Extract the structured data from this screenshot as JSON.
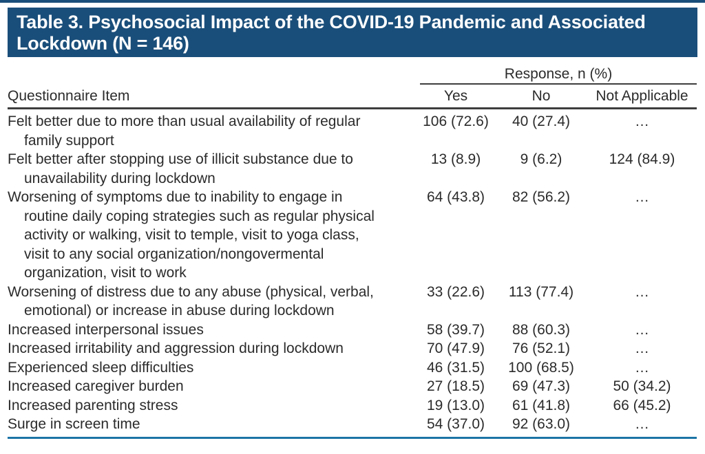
{
  "title": "Table 3. Psychosocial Impact of the COVID-19 Pandemic and Associated\nLockdown (N = 146)",
  "table": {
    "spanner": "Response, n (%)",
    "columns": {
      "item": "Questionnaire Item",
      "yes": "Yes",
      "no": "No",
      "na": "Not Applicable"
    },
    "rows": [
      {
        "item": "Felt better due to more than usual availability of regular\nfamily support",
        "yes": "106 (72.6)",
        "no": "40 (27.4)",
        "na": "…"
      },
      {
        "item": "Felt better after stopping use of illicit substance due to\nunavailability during lockdown",
        "yes": "13 (8.9)",
        "no": "9 (6.2)",
        "na": "124 (84.9)"
      },
      {
        "item": "Worsening of symptoms due to inability to engage in\nroutine daily coping strategies such as regular physical\nactivity or walking, visit to temple, visit to yoga class,\nvisit to any social organization/nongovermental\norganization, visit to work",
        "yes": "64 (43.8)",
        "no": "82 (56.2)",
        "na": "…"
      },
      {
        "item": "Worsening of distress due to any abuse (physical, verbal,\nemotional) or increase in abuse during lockdown",
        "yes": "33 (22.6)",
        "no": "113 (77.4)",
        "na": "…"
      },
      {
        "item": "Increased interpersonal issues",
        "yes": "58 (39.7)",
        "no": "88 (60.3)",
        "na": "…"
      },
      {
        "item": "Increased irritability and aggression during lockdown",
        "yes": "70 (47.9)",
        "no": "76 (52.1)",
        "na": "…"
      },
      {
        "item": "Experienced sleep difficulties",
        "yes": "46 (31.5)",
        "no": "100 (68.5)",
        "na": "…"
      },
      {
        "item": "Increased caregiver burden",
        "yes": "27 (18.5)",
        "no": "69 (47.3)",
        "na": "50 (34.2)"
      },
      {
        "item": "Increased parenting stress",
        "yes": "19 (13.0)",
        "no": "61 (41.8)",
        "na": "66 (45.2)"
      },
      {
        "item": "Surge in screen time",
        "yes": "54 (37.0)",
        "no": "92 (63.0)",
        "na": "…"
      }
    ]
  },
  "colors": {
    "banner_background": "#1A4E7A",
    "banner_text": "#FFFFFF",
    "top_rule": "#1A4E7A",
    "bottom_rule": "#1C74A6",
    "header_rule": "#3D3D3D",
    "body_text": "#2B2B2B"
  }
}
